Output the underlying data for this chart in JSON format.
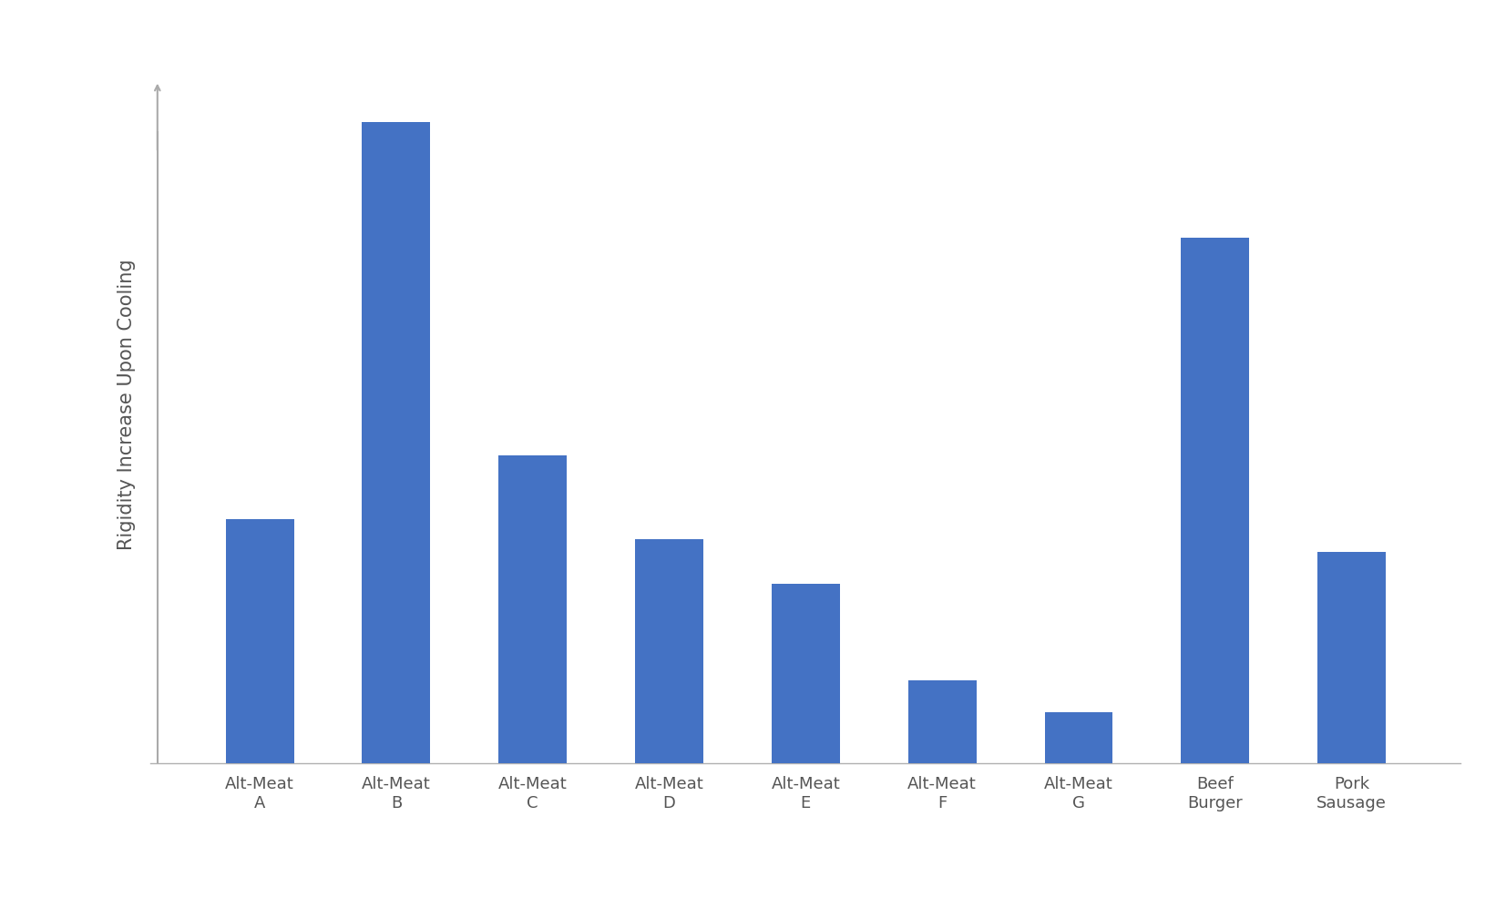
{
  "categories": [
    "Alt-Meat\nA",
    "Alt-Meat\nB",
    "Alt-Meat\nC",
    "Alt-Meat\nD",
    "Alt-Meat\nE",
    "Alt-Meat\nF",
    "Alt-Meat\nG",
    "Beef\nBurger",
    "Pork\nSausage"
  ],
  "values": [
    38,
    100,
    48,
    35,
    28,
    13,
    8,
    82,
    33
  ],
  "bar_color": "#4472C4",
  "ylabel": "Rigidity Increase Upon Cooling",
  "background_color": "#ffffff",
  "ylabel_fontsize": 15,
  "tick_fontsize": 13,
  "bar_width": 0.5,
  "ylim": [
    0,
    112
  ],
  "arrow_color": "#aaaaaa",
  "spine_color": "#b0b0b0",
  "label_color": "#555555"
}
